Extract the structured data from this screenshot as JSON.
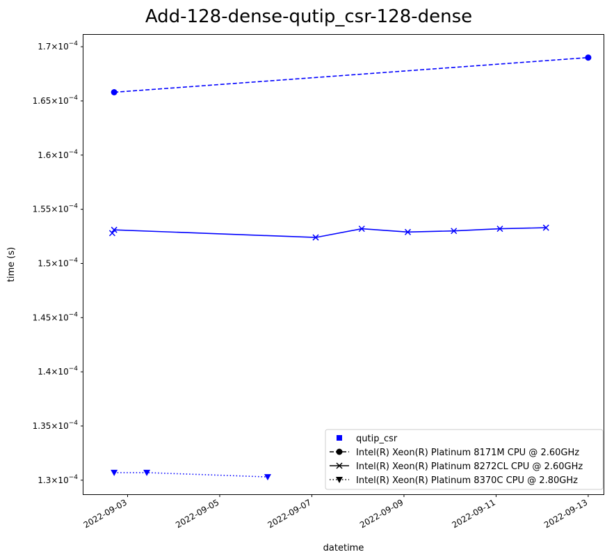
{
  "chart_data": {
    "type": "line",
    "title": "Add-128-dense-qutip_csr-128-dense",
    "xlabel": "datetime",
    "ylabel": "time (s)",
    "xlim": [
      "2022-09-02 01:00",
      "2022-09-13 08:00"
    ],
    "ylim": [
      0.0001287,
      0.0001711
    ],
    "x_ticks": [
      "2022-09-03",
      "2022-09-05",
      "2022-09-07",
      "2022-09-09",
      "2022-09-11",
      "2022-09-13"
    ],
    "y_ticks": [
      {
        "value": 0.00013,
        "mantissa": "1.3",
        "exponent": "−4"
      },
      {
        "value": 0.000135,
        "mantissa": "1.35",
        "exponent": "−4"
      },
      {
        "value": 0.00014,
        "mantissa": "1.4",
        "exponent": "−4"
      },
      {
        "value": 0.000145,
        "mantissa": "1.45",
        "exponent": "−4"
      },
      {
        "value": 0.00015,
        "mantissa": "1.5",
        "exponent": "−4"
      },
      {
        "value": 0.000155,
        "mantissa": "1.55",
        "exponent": "−4"
      },
      {
        "value": 0.00016,
        "mantissa": "1.6",
        "exponent": "−4"
      },
      {
        "value": 0.000165,
        "mantissa": "1.65",
        "exponent": "−4"
      },
      {
        "value": 0.00017,
        "mantissa": "1.7",
        "exponent": "−4"
      }
    ],
    "grid": false,
    "legend_position": "bottom-right",
    "color": "#0000ff",
    "legend": [
      {
        "label": "qutip_csr",
        "marker": "square",
        "line": "none"
      },
      {
        "label": "Intel(R) Xeon(R) Platinum 8171M CPU @ 2.60GHz",
        "marker": "circle",
        "line": "dashed"
      },
      {
        "label": "Intel(R) Xeon(R) Platinum 8272CL CPU @ 2.60GHz",
        "marker": "x",
        "line": "solid"
      },
      {
        "label": "Intel(R) Xeon(R) Platinum 8370C CPU @ 2.80GHz",
        "marker": "triangle-down",
        "line": "dotted"
      }
    ],
    "series": [
      {
        "name": "Intel(R) Xeon(R) Platinum 8171M CPU @ 2.60GHz",
        "marker": "circle",
        "line": "dashed",
        "x": [
          "2022-09-02 17:00",
          "2022-09-13 00:00"
        ],
        "y": [
          0.0001658,
          0.000169
        ]
      },
      {
        "name": "Intel(R) Xeon(R) Platinum 8272CL CPU @ 2.60GHz",
        "marker": "x",
        "line": "solid",
        "x": [
          "2022-09-02 17:00",
          "2022-09-07 02:00",
          "2022-09-08 02:00",
          "2022-09-09 02:00",
          "2022-09-10 02:00",
          "2022-09-11 02:00",
          "2022-09-12 02:00"
        ],
        "y": [
          0.0001531,
          0.0001524,
          0.0001532,
          0.0001529,
          0.000153,
          0.0001532,
          0.0001533
        ]
      },
      {
        "name": "Intel(R) Xeon(R) Platinum 8272CL CPU @ 2.60GHz",
        "marker": "x",
        "line": "solid",
        "x": [
          "2022-09-02 16:00"
        ],
        "y": [
          0.0001528
        ]
      },
      {
        "name": "Intel(R) Xeon(R) Platinum 8370C CPU @ 2.80GHz",
        "marker": "triangle-down",
        "line": "dotted",
        "x": [
          "2022-09-02 17:00",
          "2022-09-03 10:00",
          "2022-09-06 01:00"
        ],
        "y": [
          0.0001307,
          0.0001307,
          0.0001303
        ]
      }
    ]
  }
}
